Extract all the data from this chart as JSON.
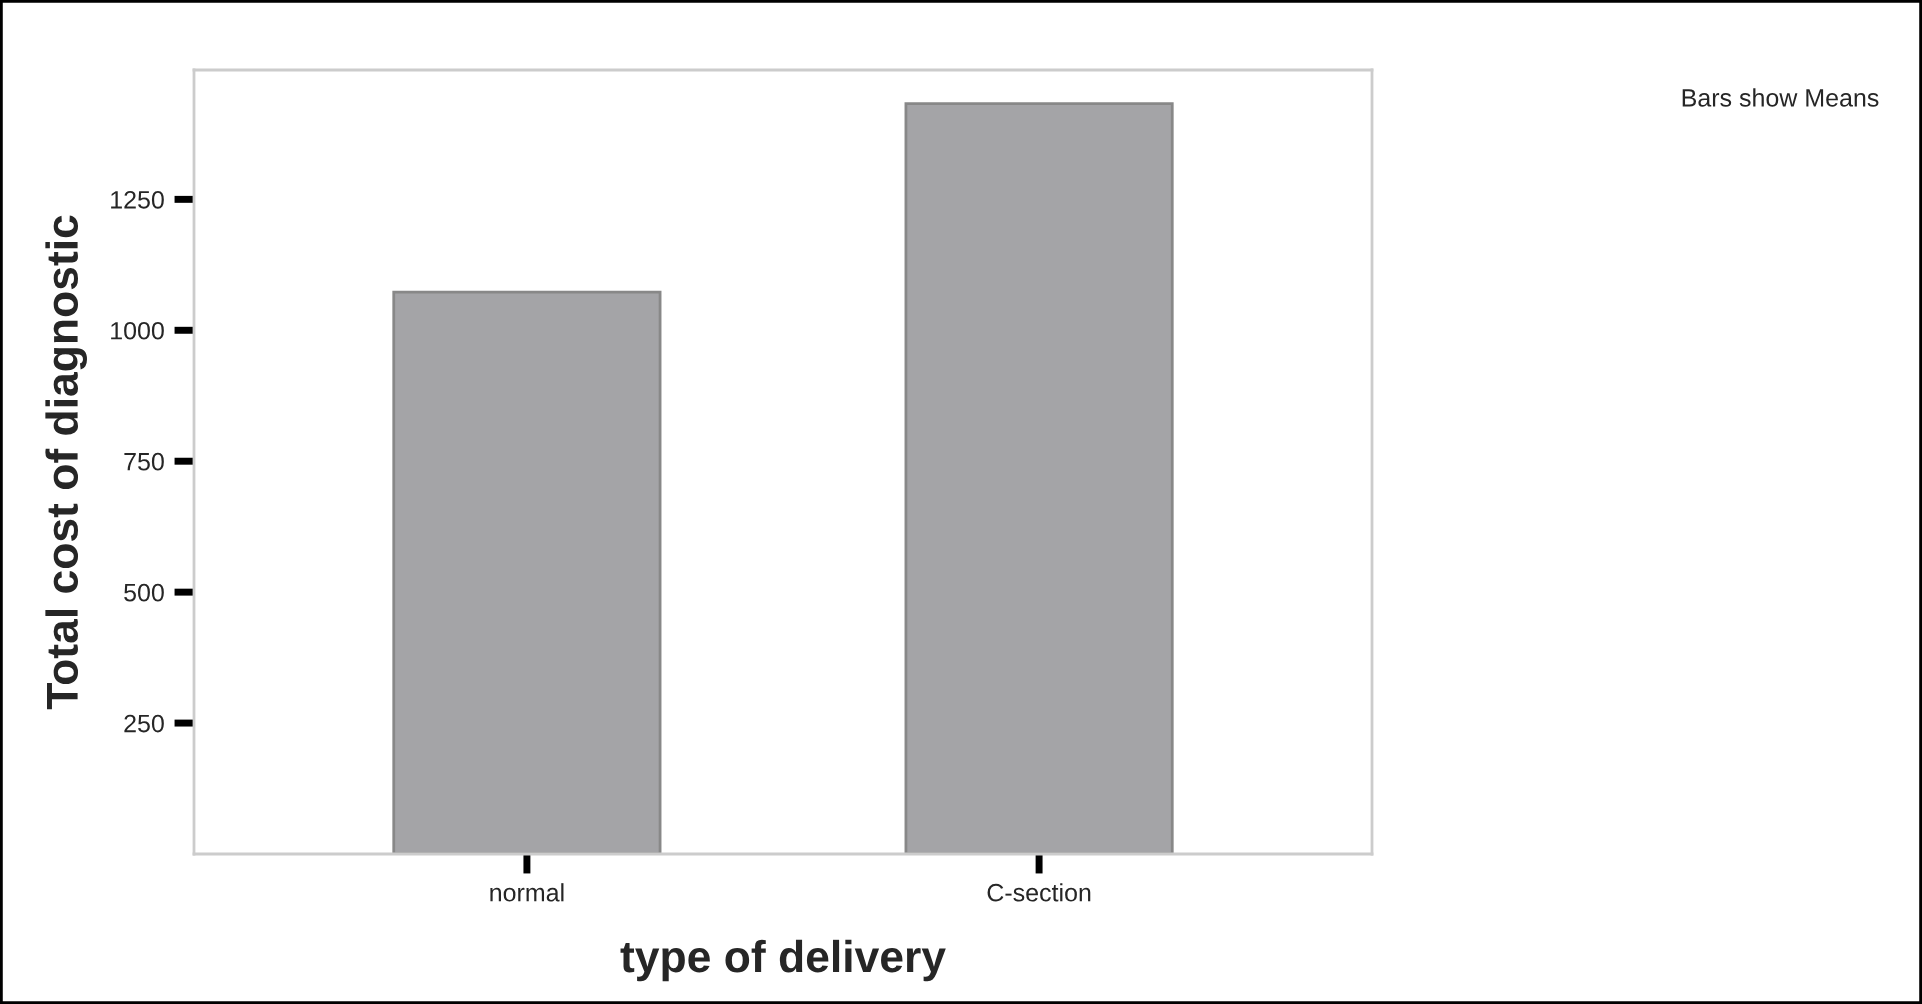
{
  "chart_data": {
    "type": "bar",
    "xlabel": "type of delivery",
    "ylabel": "Total cost of diagnostic",
    "categories": [
      "normal",
      "C-section"
    ],
    "values": [
      1073,
      1433
    ],
    "color": "#a4a4a7",
    "ylim": [
      0,
      1497
    ],
    "yticks": [
      250,
      500,
      750,
      1000,
      1250
    ],
    "grid": false,
    "annotations": [
      "Bars show Means"
    ]
  }
}
